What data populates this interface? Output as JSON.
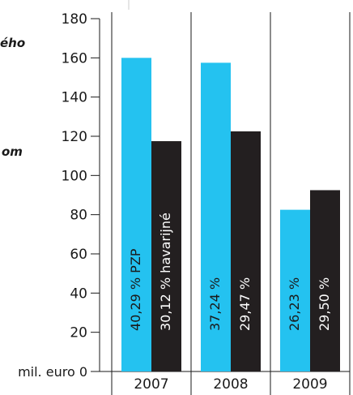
{
  "chart_data": {
    "type": "bar",
    "categories": [
      "2007",
      "2008",
      "2009"
    ],
    "series": [
      {
        "name": "PZP",
        "color": "#24c2f0",
        "values": [
          160,
          157.5,
          82.5
        ],
        "labels": [
          "40,29 %  PZP",
          "37,24 %",
          "26,23 %"
        ]
      },
      {
        "name": "havarijné",
        "color": "#231f20",
        "values": [
          117.5,
          122.5,
          92.5
        ],
        "labels": [
          "30,12 %  havarijné",
          "29,47 %",
          "29,50 %"
        ]
      }
    ],
    "y_ticks": [
      0,
      20,
      40,
      60,
      80,
      100,
      120,
      140,
      160,
      180
    ],
    "ylim": [
      0,
      180
    ],
    "ylabel": "mil. euro",
    "grid": false,
    "legend": "none"
  },
  "side_text": [
    "ého",
    "om"
  ],
  "colors": {
    "axis": "#1a1a1a",
    "text": "#1a1a1a",
    "label_on_blue": "#1a1a1a",
    "label_on_dark": "#ffffff"
  }
}
